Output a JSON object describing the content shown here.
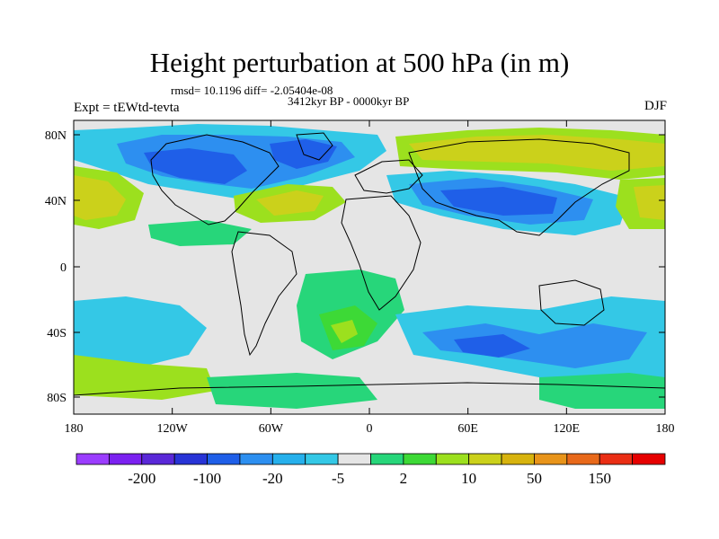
{
  "title": "Height perturbation at 500 hPa (in m)",
  "stats": "rmsd= 10.1196 diff= -2.05404e-08",
  "period": "3412kyr BP - 0000kyr BP",
  "expt": "Expt = tEWtd-tevta",
  "season": "DJF",
  "x_ticks": [
    "180",
    "120W",
    "60W",
    "0",
    "60E",
    "120E",
    "180"
  ],
  "y_ticks": [
    "80N",
    "40N",
    "0",
    "40S",
    "80S"
  ],
  "colorbar": {
    "colors": [
      "#9b3dff",
      "#7b21f0",
      "#5a28d8",
      "#2834d6",
      "#1f5fe8",
      "#2d8ff0",
      "#26b0ec",
      "#34c8e6",
      "#e5e5e5",
      "#27d67a",
      "#3dd936",
      "#9ce01e",
      "#cbd11b",
      "#d7b30e",
      "#e8941a",
      "#e8691a",
      "#ea2e14",
      "#e60000"
    ],
    "labels": [
      "-200",
      "-100",
      "-20",
      "-5",
      "2",
      "10",
      "50",
      "150"
    ]
  }
}
